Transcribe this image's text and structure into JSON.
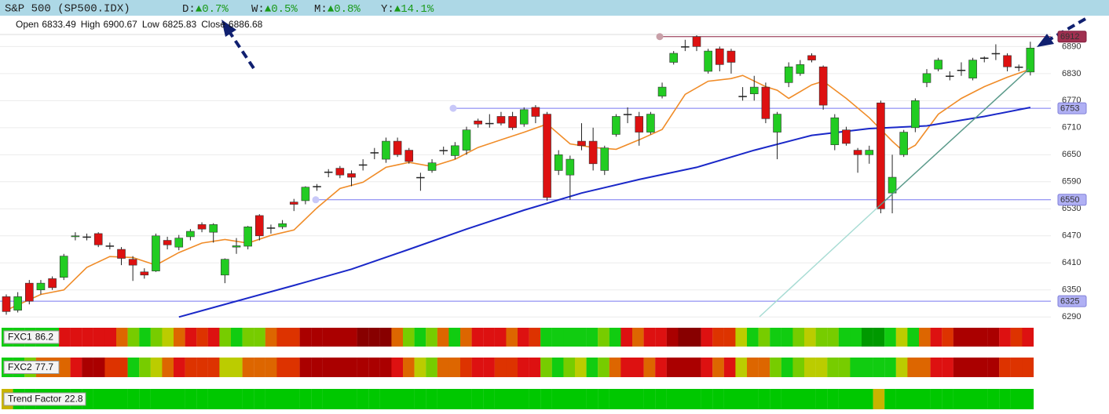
{
  "header": {
    "symbol": "S&P 500 (SP500.IDX)",
    "changes": [
      {
        "period": "D:",
        "change": "▲0.7%"
      },
      {
        "period": "W:",
        "change": "▲0.5%"
      },
      {
        "period": "M:",
        "change": "▲0.8%"
      },
      {
        "period": "Y:",
        "change": "▲14.1%"
      }
    ],
    "change_color": "#1a9a1a"
  },
  "ohlc": [
    {
      "label": "Open",
      "value": 6833.49
    },
    {
      "label": "High",
      "value": 6900.67
    },
    {
      "label": "Low",
      "value": 6825.83
    },
    {
      "label": "Close",
      "value": 6886.68
    }
  ],
  "chart_data": {
    "type": "candlestick",
    "up_color": "#22cc22",
    "down_color": "#dd1111",
    "open": [
      6335,
      6305,
      6365,
      6350,
      6375,
      6378,
      6468,
      6468,
      6475,
      6448,
      6440,
      6418,
      6390,
      6392,
      6460,
      6445,
      6468,
      6495,
      6478,
      6383,
      6445,
      6447,
      6515,
      6488,
      6490,
      6545,
      6548,
      6580,
      6612,
      6620,
      6608,
      6628,
      6655,
      6640,
      6680,
      6660,
      6600,
      6615,
      6660,
      6648,
      6660,
      6725,
      6720,
      6735,
      6735,
      6718,
      6755,
      6740,
      6615,
      6605,
      6680,
      6680,
      6615,
      6695,
      6740,
      6735,
      6700,
      6780,
      6855,
      6890,
      6912,
      6835,
      6885,
      6880,
      6780,
      6785,
      6800,
      6700,
      6810,
      6830,
      6870,
      6845,
      6672,
      6705,
      6660,
      6650,
      6765,
      6565,
      6650,
      6710,
      6810,
      6840,
      6825,
      6838,
      6820,
      6865,
      6875,
      6870,
      6845,
      6833.49
    ],
    "high": [
      6340,
      6345,
      6372,
      6372,
      6380,
      6430,
      6478,
      6475,
      6478,
      6455,
      6445,
      6425,
      6398,
      6475,
      6468,
      6472,
      6485,
      6500,
      6498,
      6420,
      6465,
      6492,
      6518,
      6495,
      6505,
      6552,
      6580,
      6585,
      6618,
      6625,
      6615,
      6640,
      6665,
      6688,
      6688,
      6665,
      6610,
      6640,
      6668,
      6678,
      6712,
      6730,
      6740,
      6745,
      6745,
      6755,
      6760,
      6745,
      6660,
      6648,
      6720,
      6710,
      6670,
      6740,
      6755,
      6745,
      6745,
      6810,
      6880,
      6905,
      6915,
      6885,
      6890,
      6885,
      6800,
      6825,
      6810,
      6745,
      6855,
      6860,
      6875,
      6848,
      6740,
      6712,
      6665,
      6670,
      6770,
      6650,
      6705,
      6775,
      6840,
      6865,
      6835,
      6855,
      6865,
      6868,
      6895,
      6875,
      6850,
      6900.67
    ],
    "low": [
      6295,
      6300,
      6318,
      6340,
      6350,
      6372,
      6460,
      6460,
      6445,
      6440,
      6405,
      6370,
      6375,
      6390,
      6440,
      6438,
      6460,
      6478,
      6455,
      6365,
      6430,
      6440,
      6460,
      6475,
      6485,
      6525,
      6540,
      6570,
      6600,
      6598,
      6580,
      6615,
      6640,
      6632,
      6645,
      6630,
      6570,
      6610,
      6650,
      6640,
      6650,
      6710,
      6710,
      6715,
      6705,
      6712,
      6720,
      6548,
      6605,
      6550,
      6660,
      6615,
      6605,
      6690,
      6720,
      6670,
      6695,
      6775,
      6850,
      6880,
      6880,
      6830,
      6835,
      6830,
      6770,
      6770,
      6720,
      6640,
      6800,
      6825,
      6855,
      6750,
      6660,
      6670,
      6610,
      6630,
      6520,
      6520,
      6645,
      6700,
      6800,
      6835,
      6815,
      6825,
      6815,
      6855,
      6860,
      6835,
      6835,
      6825.83
    ],
    "close": [
      6302,
      6335,
      6325,
      6365,
      6355,
      6425,
      6470,
      6468,
      6450,
      6448,
      6420,
      6405,
      6383,
      6470,
      6450,
      6465,
      6480,
      6485,
      6495,
      6418,
      6448,
      6490,
      6470,
      6488,
      6497,
      6540,
      6578,
      6580,
      6612,
      6605,
      6600,
      6628,
      6655,
      6680,
      6650,
      6635,
      6600,
      6632,
      6660,
      6670,
      6705,
      6718,
      6720,
      6720,
      6710,
      6750,
      6735,
      6555,
      6650,
      6640,
      6670,
      6630,
      6665,
      6735,
      6740,
      6700,
      6740,
      6800,
      6875,
      6890,
      6890,
      6880,
      6850,
      6855,
      6780,
      6800,
      6730,
      6740,
      6845,
      6850,
      6860,
      6760,
      6732,
      6675,
      6650,
      6660,
      6530,
      6600,
      6700,
      6770,
      6830,
      6860,
      6825,
      6838,
      6860,
      6865,
      6875,
      6845,
      6845,
      6886.68
    ],
    "moving_averages": [
      {
        "color": "#f08c28",
        "x": [
          0,
          3,
          5,
          7,
          9,
          11,
          13,
          15,
          17,
          19,
          21,
          23,
          25,
          27,
          29,
          31,
          33,
          35,
          37,
          39,
          41,
          43,
          45,
          47,
          49,
          51,
          53,
          55,
          57,
          59,
          61,
          63,
          64,
          66,
          67,
          68,
          70,
          71,
          73,
          75,
          77,
          78,
          79,
          81,
          83,
          85,
          87,
          89
        ],
        "values": [
          6305,
          6340,
          6350,
          6400,
          6424,
          6422,
          6405,
          6433,
          6454,
          6462,
          6454,
          6471,
          6483,
          6532,
          6575,
          6589,
          6622,
          6633,
          6624,
          6640,
          6666,
          6683,
          6700,
          6718,
          6674,
          6666,
          6662,
          6683,
          6706,
          6784,
          6813,
          6819,
          6826,
          6801,
          6793,
          6775,
          6805,
          6813,
          6775,
          6732,
          6680,
          6657,
          6671,
          6740,
          6775,
          6801,
          6822,
          6840
        ]
      },
      {
        "color": "#1a28c8",
        "x": [
          15,
          20,
          25,
          30,
          35,
          40,
          45,
          50,
          55,
          60,
          65,
          70,
          75,
          80,
          85,
          89
        ],
        "values": [
          6290,
          6325,
          6360,
          6396,
          6440,
          6485,
          6527,
          6565,
          6595,
          6622,
          6660,
          6693,
          6708,
          6714,
          6735,
          6755
        ]
      }
    ],
    "levels": [
      {
        "value": 6912,
        "color": "#8b2040",
        "box": "#a03050",
        "text_color": "#ffffff"
      },
      {
        "value": 6753,
        "color": "#7878f0",
        "box": "#b0b0f4",
        "text_color": "#222222"
      },
      {
        "value": 6550,
        "color": "#7878f0",
        "box": "#b0b0f4",
        "text_color": "#222222"
      },
      {
        "value": 6325,
        "color": "#7878f0",
        "box": "#b0b0f4",
        "text_color": "#222222"
      }
    ],
    "ylim": [
      6280,
      6955
    ],
    "yticks": [
      6290,
      6350,
      6410,
      6470,
      6530,
      6590,
      6650,
      6710,
      6770,
      6830,
      6890
    ],
    "grid": true
  },
  "indicators": [
    {
      "name": "FXC1",
      "value": 86.2,
      "colors": [
        "#11cc11",
        "#11cc11",
        "#11cc11",
        "#11cc11",
        "#11cc11",
        "#dd1111",
        "#dd1111",
        "#dd1111",
        "#dd1111",
        "#dd1111",
        "#dd6600",
        "#77cc00",
        "#11cc11",
        "#77cc00",
        "#bbcc00",
        "#dd6600",
        "#dd1111",
        "#dd3300",
        "#dd1111",
        "#77cc00",
        "#11cc11",
        "#77cc00",
        "#77cc00",
        "#dd6600",
        "#dd3300",
        "#dd3300",
        "#aa0000",
        "#aa0000",
        "#aa0000",
        "#aa0000",
        "#aa0000",
        "#880000",
        "#880000",
        "#880000",
        "#dd6600",
        "#77cc00",
        "#11cc11",
        "#77cc00",
        "#dd6600",
        "#11cc11",
        "#dd6600",
        "#dd1111",
        "#dd1111",
        "#dd1111",
        "#dd6600",
        "#dd1111",
        "#dd3300",
        "#11cc11",
        "#11cc11",
        "#11cc11",
        "#11cc11",
        "#11cc11",
        "#77cc00",
        "#11cc11",
        "#dd1111",
        "#dd6600",
        "#dd1111",
        "#dd1111",
        "#aa0000",
        "#880000",
        "#880000",
        "#dd1111",
        "#dd3300",
        "#dd3300",
        "#bbcc00",
        "#11cc11",
        "#77cc00",
        "#11cc11",
        "#11cc11",
        "#77cc00",
        "#bbcc00",
        "#77cc00",
        "#77cc00",
        "#11cc11",
        "#11cc11",
        "#009900",
        "#009900",
        "#11cc11",
        "#bbcc00",
        "#11cc11",
        "#dd6600",
        "#dd1111",
        "#dd3300",
        "#aa0000",
        "#aa0000",
        "#aa0000",
        "#aa0000",
        "#dd1111",
        "#dd3300",
        "#dd1111"
      ]
    },
    {
      "name": "FXC2",
      "value": 77.7,
      "colors": [
        "#11cc11",
        "#11cc11",
        "#77cc00",
        "#dd6600",
        "#dd6600",
        "#dd6600",
        "#dd1111",
        "#aa0000",
        "#aa0000",
        "#dd3300",
        "#dd3300",
        "#11cc11",
        "#77cc00",
        "#bbcc00",
        "#dd6600",
        "#dd1111",
        "#dd3300",
        "#dd3300",
        "#dd3300",
        "#bbcc00",
        "#bbcc00",
        "#dd6600",
        "#dd6600",
        "#dd6600",
        "#dd3300",
        "#dd3300",
        "#aa0000",
        "#aa0000",
        "#aa0000",
        "#aa0000",
        "#aa0000",
        "#aa0000",
        "#aa0000",
        "#aa0000",
        "#dd1111",
        "#dd6600",
        "#bbcc00",
        "#77cc00",
        "#dd6600",
        "#dd6600",
        "#dd3300",
        "#dd1111",
        "#dd1111",
        "#dd3300",
        "#dd3300",
        "#dd1111",
        "#dd1111",
        "#77cc00",
        "#11cc11",
        "#77cc00",
        "#bbcc00",
        "#11cc11",
        "#77cc00",
        "#dd6600",
        "#dd1111",
        "#dd1111",
        "#dd6600",
        "#dd1111",
        "#aa0000",
        "#aa0000",
        "#aa0000",
        "#dd1111",
        "#dd6600",
        "#dd1111",
        "#bbcc00",
        "#dd6600",
        "#dd6600",
        "#77cc00",
        "#11cc11",
        "#77cc00",
        "#bbcc00",
        "#bbcc00",
        "#77cc00",
        "#77cc00",
        "#11cc11",
        "#11cc11",
        "#11cc11",
        "#11cc11",
        "#bbcc00",
        "#dd6600",
        "#dd6600",
        "#dd1111",
        "#dd1111",
        "#aa0000",
        "#aa0000",
        "#aa0000",
        "#aa0000",
        "#dd3300",
        "#dd3300",
        "#dd3300"
      ]
    },
    {
      "name": "Trend Factor",
      "value": 22.8,
      "colors": [
        "#c8b400",
        "#00c800",
        "#00c800",
        "#00c800",
        "#00c800",
        "#00c800",
        "#00c800",
        "#00c800",
        "#00c800",
        "#00c800",
        "#00c800",
        "#00c800",
        "#00c800",
        "#00c800",
        "#00c800",
        "#00c800",
        "#00c800",
        "#00c800",
        "#00c800",
        "#00c800",
        "#00c800",
        "#00c800",
        "#00c800",
        "#00c800",
        "#00c800",
        "#00c800",
        "#00c800",
        "#00c800",
        "#00c800",
        "#00c800",
        "#00c800",
        "#00c800",
        "#00c800",
        "#00c800",
        "#00c800",
        "#00c800",
        "#00c800",
        "#00c800",
        "#00c800",
        "#00c800",
        "#00c800",
        "#00c800",
        "#00c800",
        "#00c800",
        "#00c800",
        "#00c800",
        "#00c800",
        "#00c800",
        "#00c800",
        "#00c800",
        "#00c800",
        "#00c800",
        "#00c800",
        "#00c800",
        "#00c800",
        "#00c800",
        "#00c800",
        "#00c800",
        "#00c800",
        "#00c800",
        "#00c800",
        "#00c800",
        "#00c800",
        "#00c800",
        "#00c800",
        "#00c800",
        "#00c800",
        "#00c800",
        "#00c800",
        "#00c800",
        "#00c800",
        "#00c800",
        "#00c800",
        "#00c800",
        "#00c800",
        "#00c800",
        "#c8b400",
        "#00c800",
        "#00c800",
        "#00c800",
        "#00c800",
        "#00c800",
        "#00c800",
        "#00c800",
        "#00c800",
        "#00c800",
        "#00c800",
        "#00c800",
        "#00c800",
        "#00c800"
      ]
    }
  ]
}
